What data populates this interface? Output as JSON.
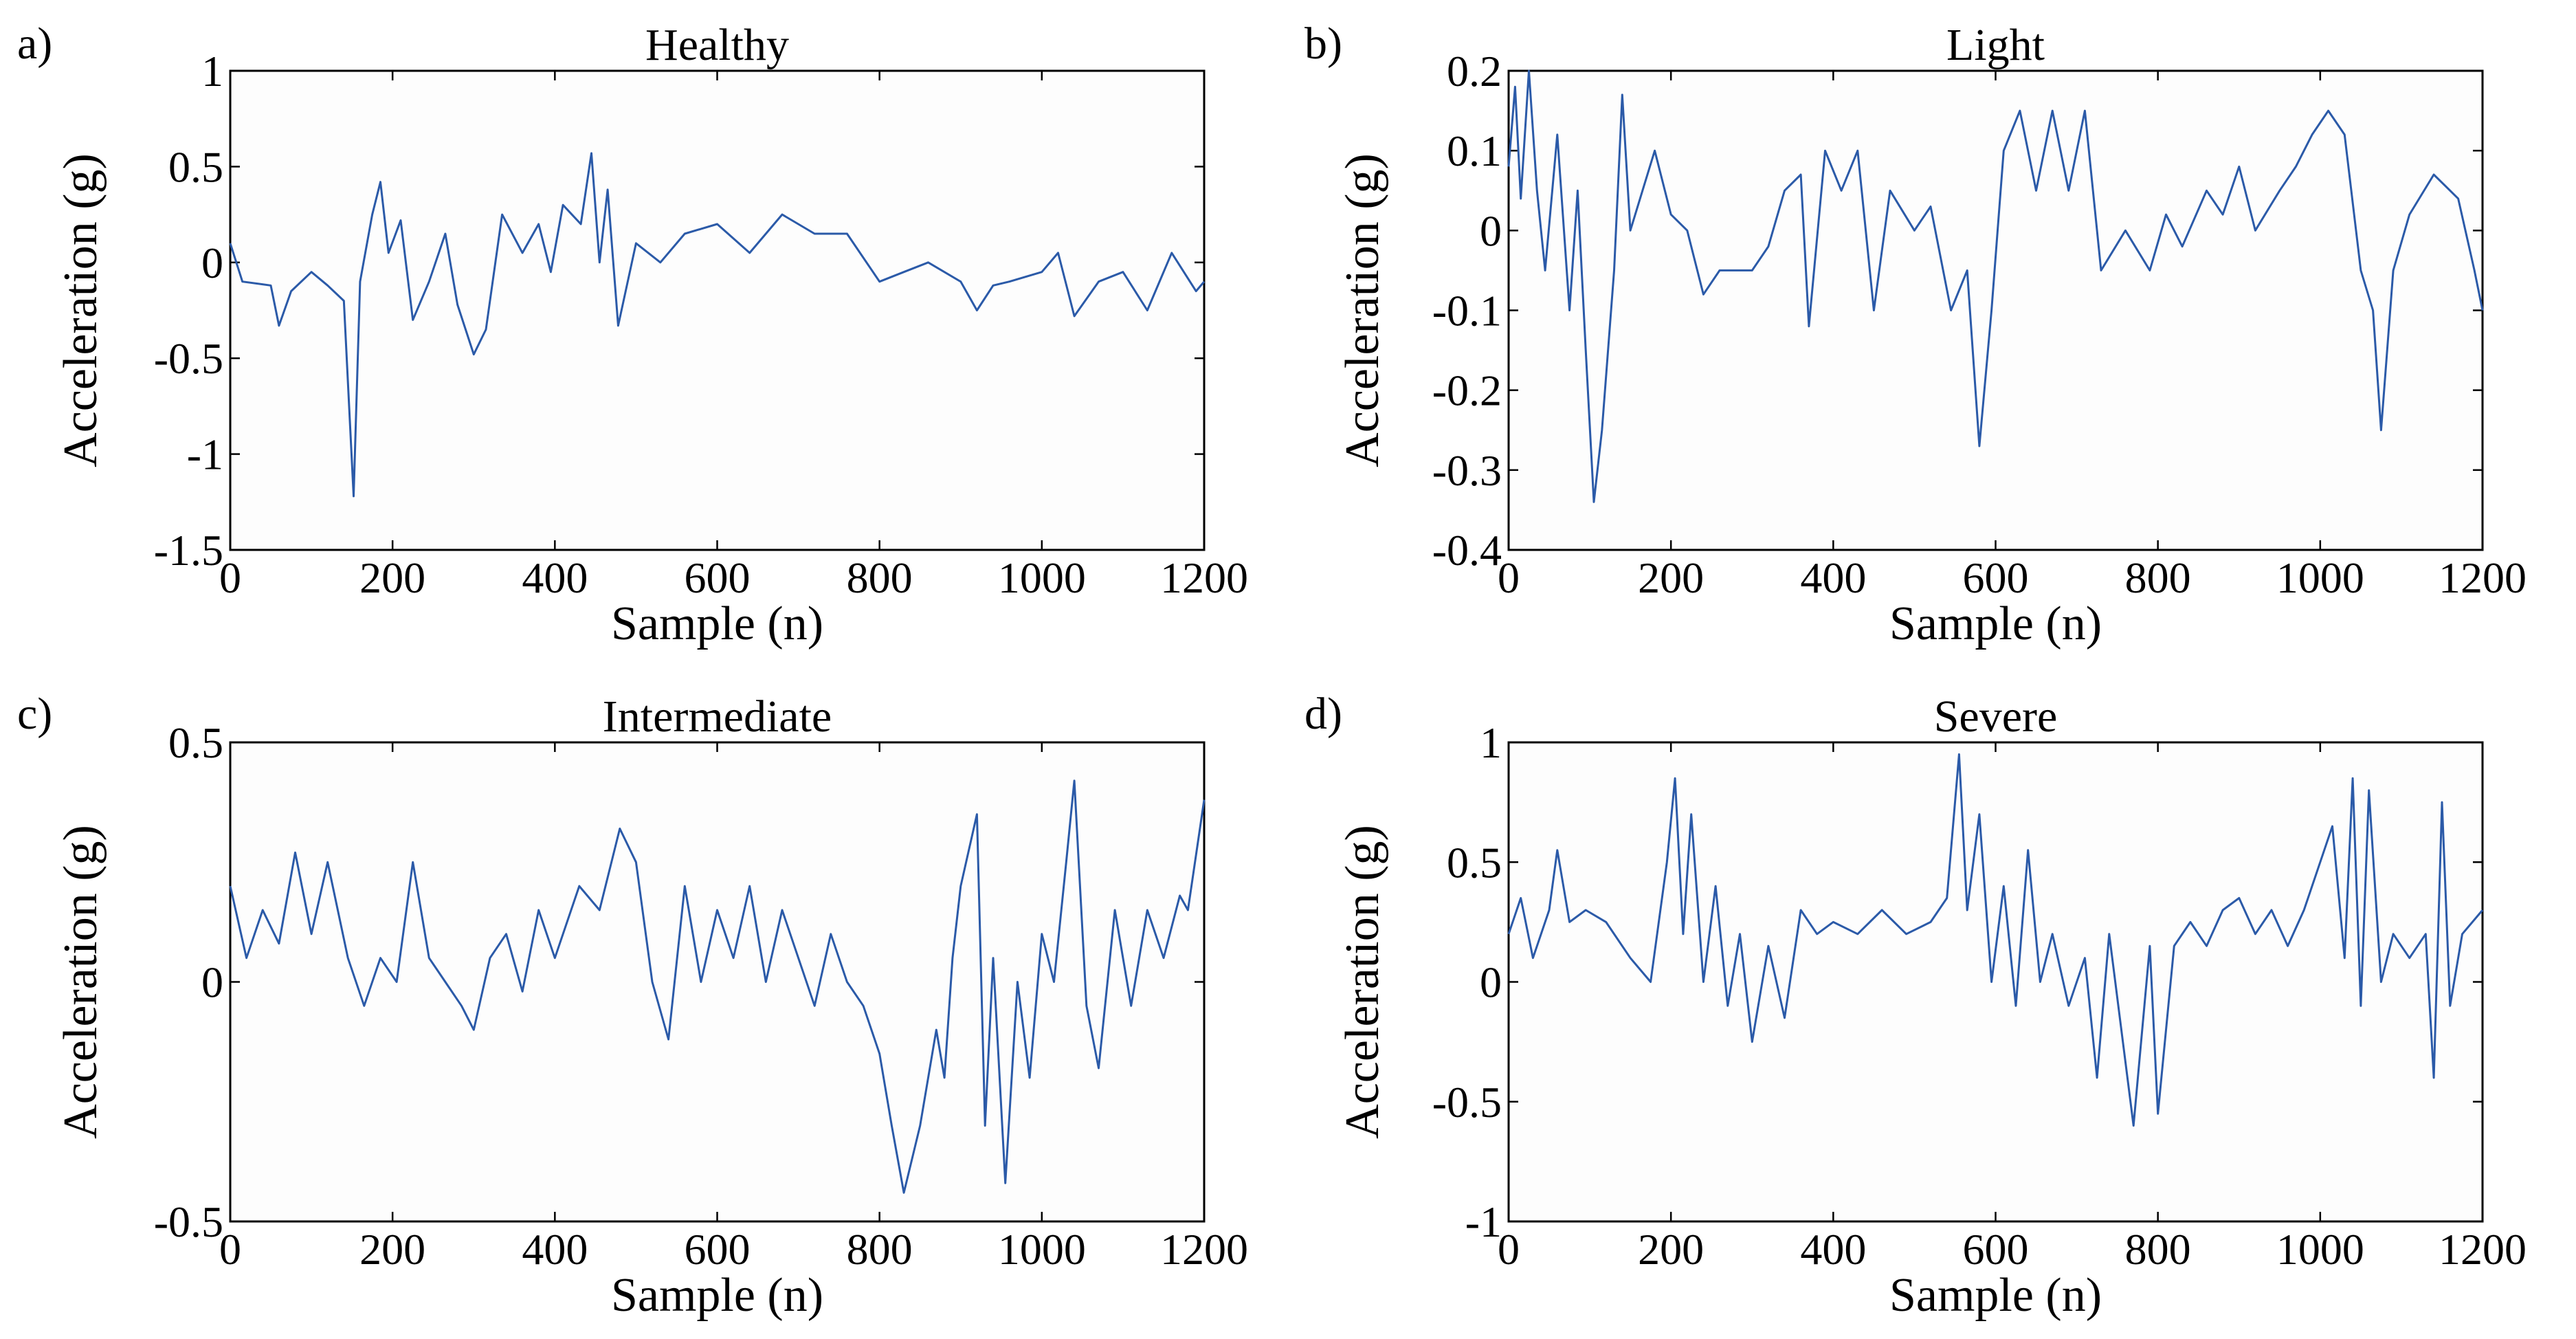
{
  "chart_data": [
    {
      "type": "line",
      "panel": "a)",
      "title": "Healthy",
      "xlabel": "Sample (n)",
      "ylabel": "Acceleration (g)",
      "xlim": [
        0,
        1200
      ],
      "ylim": [
        -1.5,
        1
      ],
      "xticks": [
        "0",
        "200",
        "400",
        "600",
        "800",
        "1000",
        "1200"
      ],
      "yticks": [
        "-1.5",
        "-1",
        "-0.5",
        "0",
        "0.5",
        "1"
      ],
      "series": [
        {
          "name": "Healthy",
          "color": "#2b5aa8",
          "points": [
            [
              0,
              0.1
            ],
            [
              15,
              -0.1
            ],
            [
              50,
              -0.12
            ],
            [
              60,
              -0.33
            ],
            [
              75,
              -0.15
            ],
            [
              100,
              -0.05
            ],
            [
              120,
              -0.12
            ],
            [
              140,
              -0.2
            ],
            [
              152,
              -1.22
            ],
            [
              160,
              -0.1
            ],
            [
              175,
              0.25
            ],
            [
              185,
              0.42
            ],
            [
              195,
              0.05
            ],
            [
              210,
              0.22
            ],
            [
              225,
              -0.3
            ],
            [
              245,
              -0.1
            ],
            [
              265,
              0.15
            ],
            [
              280,
              -0.22
            ],
            [
              300,
              -0.48
            ],
            [
              315,
              -0.35
            ],
            [
              335,
              0.25
            ],
            [
              360,
              0.05
            ],
            [
              380,
              0.2
            ],
            [
              395,
              -0.05
            ],
            [
              410,
              0.3
            ],
            [
              432,
              0.2
            ],
            [
              445,
              0.57
            ],
            [
              455,
              0.0
            ],
            [
              465,
              0.38
            ],
            [
              478,
              -0.33
            ],
            [
              500,
              0.1
            ],
            [
              530,
              0.0
            ],
            [
              560,
              0.15
            ],
            [
              600,
              0.2
            ],
            [
              640,
              0.05
            ],
            [
              680,
              0.25
            ],
            [
              720,
              0.15
            ],
            [
              760,
              0.15
            ],
            [
              800,
              -0.1
            ],
            [
              830,
              -0.05
            ],
            [
              860,
              0.0
            ],
            [
              900,
              -0.1
            ],
            [
              920,
              -0.25
            ],
            [
              940,
              -0.12
            ],
            [
              960,
              -0.1
            ],
            [
              1000,
              -0.05
            ],
            [
              1020,
              0.05
            ],
            [
              1040,
              -0.28
            ],
            [
              1070,
              -0.1
            ],
            [
              1100,
              -0.05
            ],
            [
              1130,
              -0.25
            ],
            [
              1160,
              0.05
            ],
            [
              1190,
              -0.15
            ],
            [
              1200,
              -0.1
            ]
          ]
        }
      ]
    },
    {
      "type": "line",
      "panel": "b)",
      "title": "Light",
      "xlabel": "Sample (n)",
      "ylabel": "Acceleration (g)",
      "xlim": [
        0,
        1200
      ],
      "ylim": [
        -0.4,
        0.2
      ],
      "xticks": [
        "0",
        "200",
        "400",
        "600",
        "800",
        "1000",
        "1200"
      ],
      "yticks": [
        "-0.4",
        "-0.3",
        "-0.2",
        "-0.1",
        "0",
        "0.1",
        "0.2"
      ],
      "series": [
        {
          "name": "Light",
          "color": "#2b5aa8",
          "points": [
            [
              0,
              0.08
            ],
            [
              8,
              0.18
            ],
            [
              15,
              0.04
            ],
            [
              25,
              0.2
            ],
            [
              35,
              0.05
            ],
            [
              45,
              -0.05
            ],
            [
              60,
              0.12
            ],
            [
              75,
              -0.1
            ],
            [
              85,
              0.05
            ],
            [
              95,
              -0.15
            ],
            [
              105,
              -0.34
            ],
            [
              115,
              -0.25
            ],
            [
              130,
              -0.05
            ],
            [
              140,
              0.17
            ],
            [
              150,
              0.0
            ],
            [
              165,
              0.05
            ],
            [
              180,
              0.1
            ],
            [
              200,
              0.02
            ],
            [
              220,
              0.0
            ],
            [
              240,
              -0.08
            ],
            [
              260,
              -0.05
            ],
            [
              300,
              -0.05
            ],
            [
              320,
              -0.02
            ],
            [
              340,
              0.05
            ],
            [
              360,
              0.07
            ],
            [
              370,
              -0.12
            ],
            [
              390,
              0.1
            ],
            [
              410,
              0.05
            ],
            [
              430,
              0.1
            ],
            [
              450,
              -0.1
            ],
            [
              470,
              0.05
            ],
            [
              500,
              0.0
            ],
            [
              520,
              0.03
            ],
            [
              545,
              -0.1
            ],
            [
              565,
              -0.05
            ],
            [
              580,
              -0.27
            ],
            [
              595,
              -0.1
            ],
            [
              610,
              0.1
            ],
            [
              630,
              0.15
            ],
            [
              650,
              0.05
            ],
            [
              670,
              0.15
            ],
            [
              690,
              0.05
            ],
            [
              710,
              0.15
            ],
            [
              730,
              -0.05
            ],
            [
              760,
              0.0
            ],
            [
              790,
              -0.05
            ],
            [
              810,
              0.02
            ],
            [
              830,
              -0.02
            ],
            [
              860,
              0.05
            ],
            [
              880,
              0.02
            ],
            [
              900,
              0.08
            ],
            [
              920,
              0.0
            ],
            [
              950,
              0.05
            ],
            [
              970,
              0.08
            ],
            [
              990,
              0.12
            ],
            [
              1010,
              0.15
            ],
            [
              1030,
              0.12
            ],
            [
              1050,
              -0.05
            ],
            [
              1065,
              -0.1
            ],
            [
              1075,
              -0.25
            ],
            [
              1090,
              -0.05
            ],
            [
              1110,
              0.02
            ],
            [
              1140,
              0.07
            ],
            [
              1170,
              0.04
            ],
            [
              1190,
              -0.05
            ],
            [
              1200,
              -0.1
            ]
          ]
        }
      ]
    },
    {
      "type": "line",
      "panel": "c)",
      "title": "Intermediate",
      "xlabel": "Sample (n)",
      "ylabel": "Acceleration (g)",
      "xlim": [
        0,
        1200
      ],
      "ylim": [
        -0.5,
        0.5
      ],
      "xticks": [
        "0",
        "200",
        "400",
        "600",
        "800",
        "1000",
        "1200"
      ],
      "yticks": [
        "-0.5",
        "0",
        "0.5"
      ],
      "series": [
        {
          "name": "Intermediate",
          "color": "#2b5aa8",
          "points": [
            [
              0,
              0.2
            ],
            [
              20,
              0.05
            ],
            [
              40,
              0.15
            ],
            [
              60,
              0.08
            ],
            [
              80,
              0.27
            ],
            [
              100,
              0.1
            ],
            [
              120,
              0.25
            ],
            [
              145,
              0.05
            ],
            [
              165,
              -0.05
            ],
            [
              185,
              0.05
            ],
            [
              205,
              0.0
            ],
            [
              225,
              0.25
            ],
            [
              245,
              0.05
            ],
            [
              265,
              0.0
            ],
            [
              285,
              -0.05
            ],
            [
              300,
              -0.1
            ],
            [
              320,
              0.05
            ],
            [
              340,
              0.1
            ],
            [
              360,
              -0.02
            ],
            [
              380,
              0.15
            ],
            [
              400,
              0.05
            ],
            [
              430,
              0.2
            ],
            [
              455,
              0.15
            ],
            [
              480,
              0.32
            ],
            [
              500,
              0.25
            ],
            [
              520,
              0.0
            ],
            [
              540,
              -0.12
            ],
            [
              560,
              0.2
            ],
            [
              580,
              0.0
            ],
            [
              600,
              0.15
            ],
            [
              620,
              0.05
            ],
            [
              640,
              0.2
            ],
            [
              660,
              0.0
            ],
            [
              680,
              0.15
            ],
            [
              700,
              0.05
            ],
            [
              720,
              -0.05
            ],
            [
              740,
              0.1
            ],
            [
              760,
              0.0
            ],
            [
              780,
              -0.05
            ],
            [
              800,
              -0.15
            ],
            [
              815,
              -0.3
            ],
            [
              830,
              -0.44
            ],
            [
              850,
              -0.3
            ],
            [
              870,
              -0.1
            ],
            [
              880,
              -0.2
            ],
            [
              890,
              0.05
            ],
            [
              900,
              0.2
            ],
            [
              920,
              0.35
            ],
            [
              930,
              -0.3
            ],
            [
              940,
              0.05
            ],
            [
              955,
              -0.42
            ],
            [
              970,
              0.0
            ],
            [
              985,
              -0.2
            ],
            [
              1000,
              0.1
            ],
            [
              1015,
              0.0
            ],
            [
              1030,
              0.25
            ],
            [
              1040,
              0.42
            ],
            [
              1055,
              -0.05
            ],
            [
              1070,
              -0.18
            ],
            [
              1090,
              0.15
            ],
            [
              1110,
              -0.05
            ],
            [
              1130,
              0.15
            ],
            [
              1150,
              0.05
            ],
            [
              1170,
              0.18
            ],
            [
              1180,
              0.15
            ],
            [
              1200,
              0.38
            ]
          ]
        }
      ]
    },
    {
      "type": "line",
      "panel": "d)",
      "title": "Severe",
      "xlabel": "Sample (n)",
      "ylabel": "Acceleration (g)",
      "xlim": [
        0,
        1200
      ],
      "ylim": [
        -1,
        1
      ],
      "xticks": [
        "0",
        "200",
        "400",
        "600",
        "800",
        "1000",
        "1200"
      ],
      "yticks": [
        "-1",
        "-0.5",
        "0",
        "0.5",
        "1"
      ],
      "series": [
        {
          "name": "Severe",
          "color": "#2b5aa8",
          "points": [
            [
              0,
              0.2
            ],
            [
              15,
              0.35
            ],
            [
              30,
              0.1
            ],
            [
              50,
              0.3
            ],
            [
              60,
              0.55
            ],
            [
              75,
              0.25
            ],
            [
              95,
              0.3
            ],
            [
              120,
              0.25
            ],
            [
              150,
              0.1
            ],
            [
              175,
              0.0
            ],
            [
              195,
              0.5
            ],
            [
              205,
              0.85
            ],
            [
              215,
              0.2
            ],
            [
              225,
              0.7
            ],
            [
              240,
              0.0
            ],
            [
              255,
              0.4
            ],
            [
              270,
              -0.1
            ],
            [
              285,
              0.2
            ],
            [
              300,
              -0.25
            ],
            [
              320,
              0.15
            ],
            [
              340,
              -0.15
            ],
            [
              360,
              0.3
            ],
            [
              380,
              0.2
            ],
            [
              400,
              0.25
            ],
            [
              430,
              0.2
            ],
            [
              460,
              0.3
            ],
            [
              490,
              0.2
            ],
            [
              520,
              0.25
            ],
            [
              540,
              0.35
            ],
            [
              555,
              0.95
            ],
            [
              565,
              0.3
            ],
            [
              580,
              0.7
            ],
            [
              595,
              0.0
            ],
            [
              610,
              0.4
            ],
            [
              625,
              -0.1
            ],
            [
              640,
              0.55
            ],
            [
              655,
              0.0
            ],
            [
              670,
              0.2
            ],
            [
              690,
              -0.1
            ],
            [
              710,
              0.1
            ],
            [
              725,
              -0.4
            ],
            [
              740,
              0.2
            ],
            [
              755,
              -0.2
            ],
            [
              770,
              -0.6
            ],
            [
              790,
              0.15
            ],
            [
              800,
              -0.55
            ],
            [
              820,
              0.15
            ],
            [
              840,
              0.25
            ],
            [
              860,
              0.15
            ],
            [
              880,
              0.3
            ],
            [
              900,
              0.35
            ],
            [
              920,
              0.2
            ],
            [
              940,
              0.3
            ],
            [
              960,
              0.15
            ],
            [
              980,
              0.3
            ],
            [
              1000,
              0.5
            ],
            [
              1015,
              0.65
            ],
            [
              1030,
              0.1
            ],
            [
              1040,
              0.85
            ],
            [
              1050,
              -0.1
            ],
            [
              1060,
              0.8
            ],
            [
              1075,
              0.0
            ],
            [
              1090,
              0.2
            ],
            [
              1110,
              0.1
            ],
            [
              1130,
              0.2
            ],
            [
              1140,
              -0.4
            ],
            [
              1150,
              0.75
            ],
            [
              1160,
              -0.1
            ],
            [
              1175,
              0.2
            ],
            [
              1200,
              0.3
            ]
          ]
        }
      ]
    }
  ]
}
